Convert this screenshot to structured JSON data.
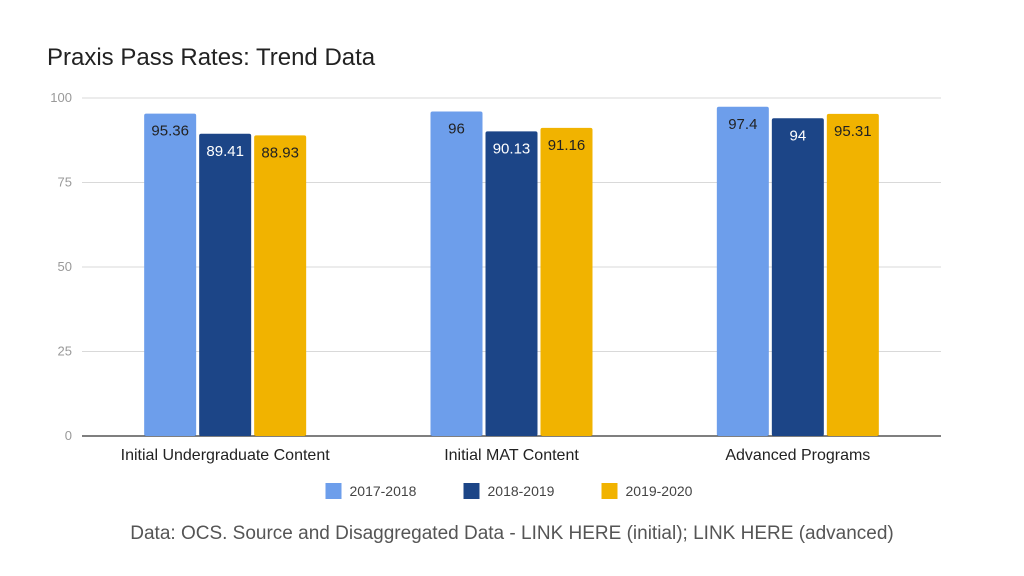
{
  "chart_data": {
    "type": "bar",
    "title": "Praxis Pass Rates: Trend Data",
    "xlabel": "",
    "ylabel": "",
    "ylim": [
      0,
      100
    ],
    "yticks": [
      0,
      25,
      50,
      75,
      100
    ],
    "categories": [
      "Initial Undergraduate Content",
      "Initial MAT Content",
      "Advanced Programs"
    ],
    "series": [
      {
        "name": "2017-2018",
        "color": "#6d9eeb",
        "values": [
          95.36,
          96,
          97.4
        ],
        "labels": [
          "95.36",
          "96",
          "97.4"
        ]
      },
      {
        "name": "2018-2019",
        "color": "#1c4587",
        "values": [
          89.41,
          90.13,
          94
        ],
        "labels": [
          "89.41",
          "90.13",
          "94"
        ]
      },
      {
        "name": "2019-2020",
        "color": "#f1b300",
        "values": [
          88.93,
          91.16,
          95.31
        ],
        "labels": [
          "88.93",
          "91.16",
          "95.31"
        ]
      }
    ],
    "legend": "bottom",
    "grid": true
  },
  "footnote": "Data: OCS. Source and Disaggregated Data - LINK HERE (initial); LINK HERE (advanced)"
}
